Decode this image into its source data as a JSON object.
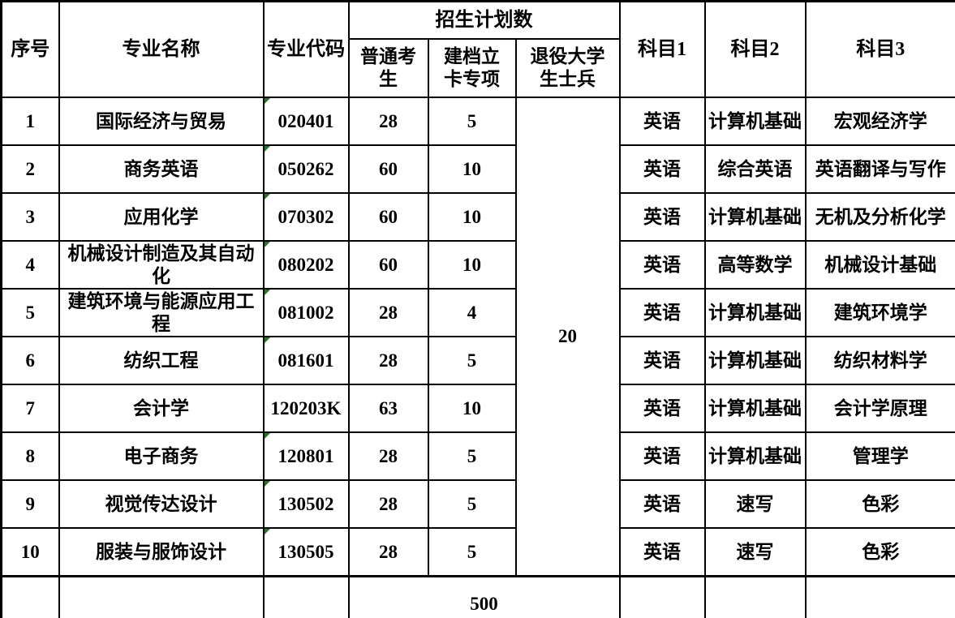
{
  "table": {
    "headers": {
      "index": "序号",
      "major_name": "专业名称",
      "major_code": "专业代码",
      "plan_group": "招生计划数",
      "regular": "普通考\n生",
      "special": "建档立\n卡专项",
      "veteran": "退役大学\n生士兵",
      "subject1": "科目1",
      "subject2": "科目2",
      "subject3": "科目3"
    },
    "rows": [
      {
        "index": "1",
        "name": "国际经济与贸易",
        "code": "020401",
        "code_flag": true,
        "regular": "28",
        "special": "5",
        "subject1": "英语",
        "subject2": "计算机基础",
        "subject3": "宏观经济学"
      },
      {
        "index": "2",
        "name": "商务英语",
        "code": "050262",
        "code_flag": true,
        "regular": "60",
        "special": "10",
        "subject1": "英语",
        "subject2": "综合英语",
        "subject3": "英语翻译与写作"
      },
      {
        "index": "3",
        "name": "应用化学",
        "code": "070302",
        "code_flag": true,
        "regular": "60",
        "special": "10",
        "subject1": "英语",
        "subject2": "计算机基础",
        "subject3": "无机及分析化学"
      },
      {
        "index": "4",
        "name": "机械设计制造及其自动\n化",
        "code": "080202",
        "code_flag": true,
        "regular": "60",
        "special": "10",
        "subject1": "英语",
        "subject2": "高等数学",
        "subject3": "机械设计基础"
      },
      {
        "index": "5",
        "name": "建筑环境与能源应用工\n程",
        "code": "081002",
        "code_flag": true,
        "regular": "28",
        "special": "4",
        "subject1": "英语",
        "subject2": "计算机基础",
        "subject3": "建筑环境学"
      },
      {
        "index": "6",
        "name": "纺织工程",
        "code": "081601",
        "code_flag": true,
        "regular": "28",
        "special": "5",
        "subject1": "英语",
        "subject2": "计算机基础",
        "subject3": "纺织材料学"
      },
      {
        "index": "7",
        "name": "会计学",
        "code": "120203K",
        "code_flag": false,
        "regular": "63",
        "special": "10",
        "subject1": "英语",
        "subject2": "计算机基础",
        "subject3": "会计学原理"
      },
      {
        "index": "8",
        "name": "电子商务",
        "code": "120801",
        "code_flag": true,
        "regular": "28",
        "special": "5",
        "subject1": "英语",
        "subject2": "计算机基础",
        "subject3": "管理学"
      },
      {
        "index": "9",
        "name": "视觉传达设计",
        "code": "130502",
        "code_flag": true,
        "regular": "28",
        "special": "5",
        "subject1": "英语",
        "subject2": "速写",
        "subject3": "色彩"
      },
      {
        "index": "10",
        "name": "服装与服饰设计",
        "code": "130505",
        "code_flag": true,
        "regular": "28",
        "special": "5",
        "subject1": "英语",
        "subject2": "速写",
        "subject3": "色彩"
      }
    ],
    "veteran_total": "20",
    "grand_total": "500"
  },
  "colors": {
    "flag_green": "#1f7a1f",
    "border_black": "#000000",
    "background": "#ffffff"
  }
}
